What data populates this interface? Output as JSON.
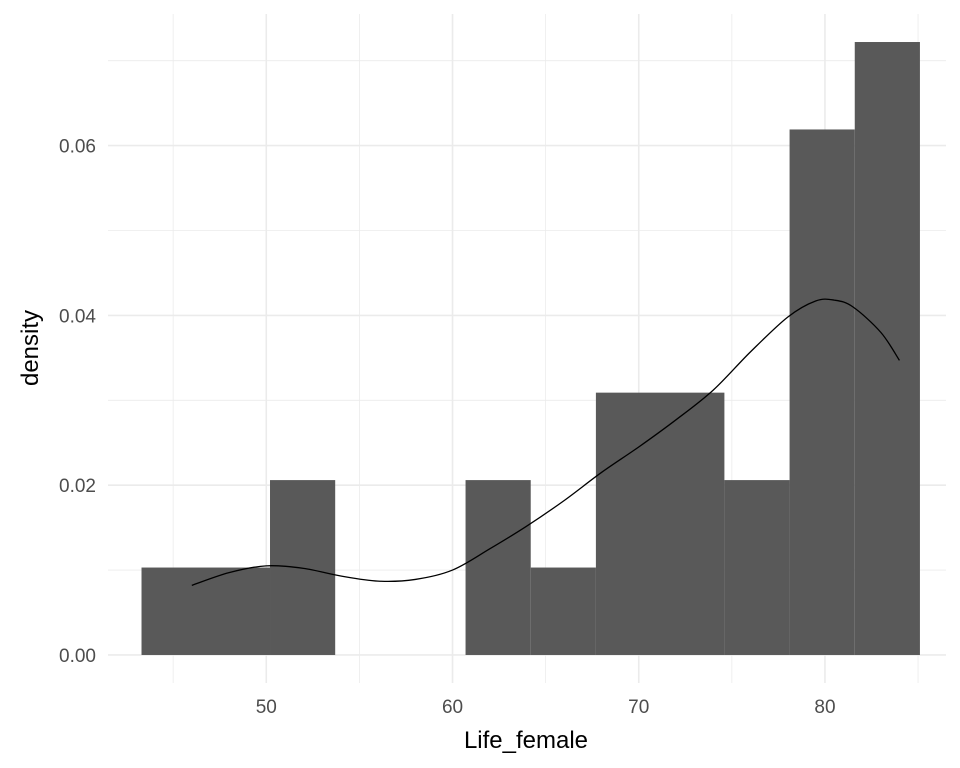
{
  "chart_data": {
    "type": "bar",
    "subtype": "histogram-with-density",
    "xlabel": "Life_female",
    "ylabel": "density",
    "xlim": [
      41.5,
      86.5
    ],
    "ylim": [
      -0.0033,
      0.0755
    ],
    "x_ticks": [
      50,
      60,
      70,
      80
    ],
    "x_tick_labels": [
      "50",
      "60",
      "70",
      "80"
    ],
    "y_ticks": [
      0.0,
      0.02,
      0.04,
      0.06
    ],
    "y_tick_labels": [
      "0.00",
      "0.02",
      "0.04",
      "0.06"
    ],
    "grid": true,
    "legend": "none",
    "bins": [
      {
        "x0": 43.3,
        "x1": 50.2,
        "density": 0.0103
      },
      {
        "x0": 50.2,
        "x1": 53.7,
        "density": 0.0206
      },
      {
        "x0": 60.7,
        "x1": 64.2,
        "density": 0.0206
      },
      {
        "x0": 64.2,
        "x1": 67.7,
        "density": 0.0103
      },
      {
        "x0": 67.7,
        "x1": 74.6,
        "density": 0.0309
      },
      {
        "x0": 74.6,
        "x1": 78.1,
        "density": 0.0206
      },
      {
        "x0": 78.1,
        "x1": 81.6,
        "density": 0.0619
      },
      {
        "x0": 81.6,
        "x1": 85.1,
        "density": 0.0722
      }
    ],
    "density_curve": {
      "x": [
        46.0,
        48.0,
        50.0,
        52.0,
        54.0,
        56.0,
        58.0,
        60.0,
        62.0,
        64.0,
        66.0,
        68.0,
        70.0,
        72.0,
        74.0,
        76.0,
        78.0,
        79.5,
        80.5,
        81.5,
        83.0,
        84.0
      ],
      "y": [
        0.0082,
        0.0097,
        0.0105,
        0.0102,
        0.0093,
        0.0087,
        0.0089,
        0.01,
        0.0125,
        0.0152,
        0.0182,
        0.0215,
        0.0245,
        0.0277,
        0.0312,
        0.0357,
        0.0398,
        0.0417,
        0.0418,
        0.041,
        0.038,
        0.0347
      ]
    },
    "colors": {
      "bar_fill": "#595959",
      "curve": "#000000",
      "grid": "#ebebeb",
      "background": "#ffffff"
    }
  }
}
